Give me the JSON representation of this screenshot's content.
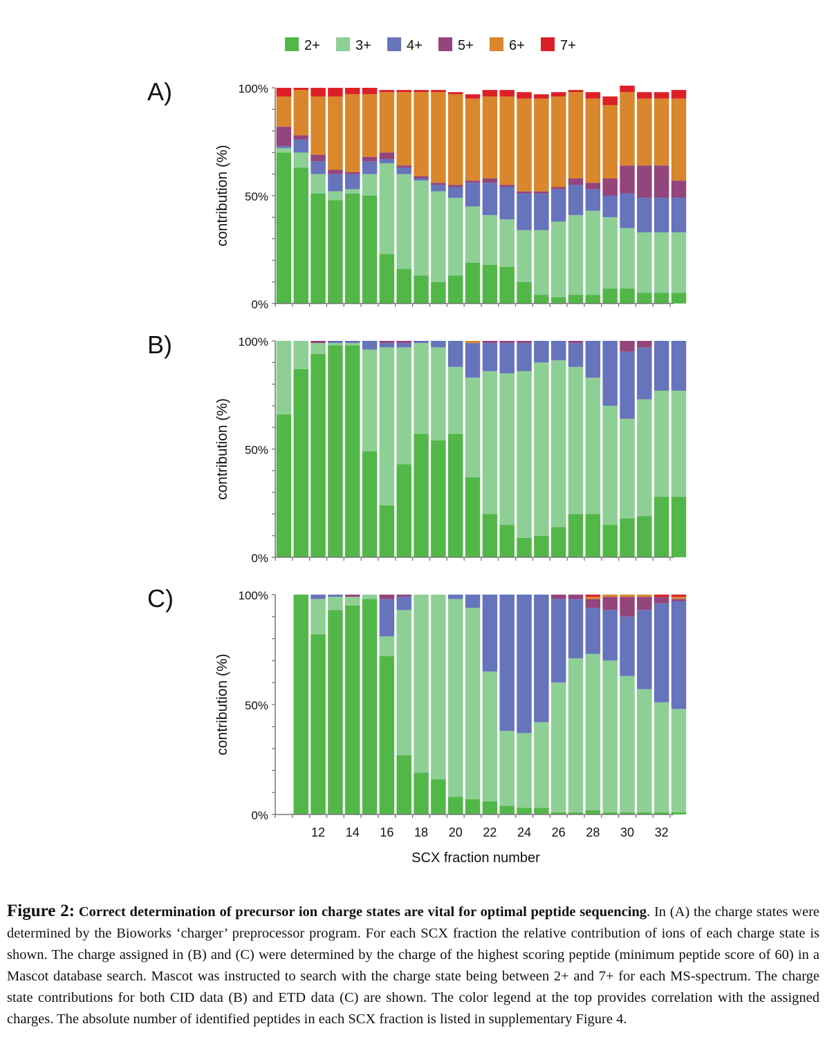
{
  "legend": {
    "items": [
      {
        "label": "2+",
        "color": "#52b748"
      },
      {
        "label": "3+",
        "color": "#8ecf95"
      },
      {
        "label": "4+",
        "color": "#6674bc"
      },
      {
        "label": "5+",
        "color": "#94457c"
      },
      {
        "label": "6+",
        "color": "#d9862c"
      },
      {
        "label": "7+",
        "color": "#dc2027"
      }
    ]
  },
  "chart_data": [
    {
      "type": "bar",
      "stacked": true,
      "panel_label": "A)",
      "ylabel": "contribution (%)",
      "yticks": [
        "0%",
        "50%",
        "100%"
      ],
      "ylim": [
        0,
        100
      ],
      "categories": [
        10,
        11,
        12,
        13,
        14,
        15,
        16,
        17,
        18,
        19,
        20,
        21,
        22,
        23,
        24,
        25,
        26,
        27,
        28,
        29,
        30,
        31,
        32,
        33
      ],
      "series": [
        {
          "name": "2+",
          "values": [
            70,
            63,
            51,
            48,
            51,
            50,
            23,
            16,
            13,
            10,
            13,
            19,
            18,
            17,
            10,
            4,
            3,
            4,
            4,
            7,
            7,
            5,
            5,
            5
          ]
        },
        {
          "name": "3+",
          "values": [
            2,
            7,
            9,
            4,
            2,
            10,
            42,
            44,
            44,
            42,
            36,
            26,
            23,
            22,
            24,
            30,
            35,
            37,
            39,
            33,
            28,
            28,
            28,
            28
          ]
        },
        {
          "name": "4+",
          "values": [
            1,
            6,
            6,
            8,
            7,
            6,
            2,
            3,
            1,
            3,
            5,
            11,
            15,
            15,
            17,
            17,
            15,
            14,
            10,
            10,
            16,
            16,
            16,
            16
          ]
        },
        {
          "name": "5+",
          "values": [
            9,
            2,
            3,
            2,
            1,
            2,
            3,
            1,
            1,
            1,
            1,
            1,
            2,
            1,
            1,
            1,
            1,
            3,
            3,
            8,
            13,
            15,
            15,
            8
          ]
        },
        {
          "name": "6+",
          "values": [
            14,
            21,
            27,
            34,
            36,
            29,
            28,
            34,
            39,
            42,
            42,
            38,
            38,
            41,
            43,
            43,
            42,
            40,
            39,
            34,
            34,
            31,
            31,
            38
          ]
        },
        {
          "name": "7+",
          "values": [
            4,
            1,
            4,
            4,
            3,
            3,
            1,
            1,
            1,
            1,
            1,
            2,
            3,
            3,
            3,
            2,
            2,
            1,
            3,
            4,
            3,
            3,
            3,
            4
          ]
        }
      ]
    },
    {
      "type": "bar",
      "stacked": true,
      "panel_label": "B)",
      "ylabel": "contribution (%)",
      "yticks": [
        "0%",
        "50%",
        "100%"
      ],
      "ylim": [
        0,
        100
      ],
      "categories": [
        10,
        11,
        12,
        13,
        14,
        15,
        16,
        17,
        18,
        19,
        20,
        21,
        22,
        23,
        24,
        25,
        26,
        27,
        28,
        29,
        30,
        31,
        32,
        33
      ],
      "series": [
        {
          "name": "2+",
          "values": [
            66,
            87,
            94,
            98,
            98,
            49,
            24,
            43,
            57,
            54,
            57,
            37,
            20,
            15,
            9,
            10,
            14,
            20,
            20,
            15,
            18,
            19,
            28,
            28
          ]
        },
        {
          "name": "3+",
          "values": [
            34,
            13,
            5,
            1,
            1,
            47,
            73,
            54,
            42,
            43,
            31,
            46,
            66,
            70,
            77,
            80,
            77,
            68,
            63,
            55,
            46,
            54,
            49,
            49
          ]
        },
        {
          "name": "4+",
          "values": [
            0,
            0,
            0,
            1,
            1,
            4,
            2,
            2,
            1,
            3,
            12,
            16,
            13,
            14,
            13,
            10,
            9,
            11,
            17,
            30,
            31,
            24,
            23,
            23
          ]
        },
        {
          "name": "5+",
          "values": [
            0,
            0,
            1,
            0,
            0,
            0,
            1,
            1,
            0,
            0,
            0,
            0,
            1,
            1,
            1,
            0,
            0,
            1,
            0,
            0,
            5,
            3,
            0,
            0
          ]
        },
        {
          "name": "6+",
          "values": [
            0,
            0,
            0,
            0,
            0,
            0,
            0,
            0,
            0,
            0,
            0,
            1,
            0,
            0,
            0,
            0,
            0,
            0,
            0,
            0,
            0,
            0,
            0,
            0
          ]
        },
        {
          "name": "7+",
          "values": [
            0,
            0,
            0,
            0,
            0,
            0,
            0,
            0,
            0,
            0,
            0,
            0,
            0,
            0,
            0,
            0,
            0,
            0,
            0,
            0,
            0,
            0,
            0,
            0
          ]
        }
      ]
    },
    {
      "type": "bar",
      "stacked": true,
      "panel_label": "C)",
      "ylabel": "contribution (%)",
      "xlabel": "SCX fraction number",
      "yticks": [
        "0%",
        "50%",
        "100%"
      ],
      "xticks": [
        "12",
        "14",
        "16",
        "18",
        "20",
        "22",
        "24",
        "26",
        "28",
        "30",
        "32"
      ],
      "ylim": [
        0,
        100
      ],
      "categories": [
        11,
        12,
        13,
        14,
        15,
        16,
        17,
        18,
        19,
        20,
        21,
        22,
        23,
        24,
        25,
        26,
        27,
        28,
        29,
        30,
        31,
        32,
        33
      ],
      "series": [
        {
          "name": "2+",
          "values": [
            100,
            82,
            93,
            95,
            98,
            72,
            27,
            19,
            16,
            8,
            7,
            6,
            4,
            3,
            3,
            1,
            1,
            2,
            1,
            1,
            1,
            1,
            1
          ]
        },
        {
          "name": "3+",
          "values": [
            0,
            16,
            6,
            4,
            2,
            9,
            66,
            81,
            84,
            90,
            87,
            59,
            34,
            34,
            39,
            59,
            70,
            71,
            69,
            62,
            56,
            50,
            47
          ]
        },
        {
          "name": "4+",
          "values": [
            0,
            2,
            1,
            0,
            0,
            17,
            6,
            0,
            0,
            2,
            6,
            35,
            62,
            63,
            58,
            38,
            27,
            21,
            23,
            27,
            36,
            45,
            49
          ]
        },
        {
          "name": "5+",
          "values": [
            0,
            0,
            0,
            1,
            0,
            2,
            1,
            0,
            0,
            0,
            0,
            0,
            0,
            0,
            0,
            2,
            2,
            4,
            6,
            9,
            6,
            3,
            1
          ]
        },
        {
          "name": "6+",
          "values": [
            0,
            0,
            0,
            0,
            0,
            0,
            0,
            0,
            0,
            0,
            0,
            0,
            0,
            0,
            0,
            0,
            0,
            1,
            1,
            1,
            1,
            0,
            1
          ]
        },
        {
          "name": "7+",
          "values": [
            0,
            0,
            0,
            0,
            0,
            0,
            0,
            0,
            0,
            0,
            0,
            0,
            0,
            0,
            0,
            0,
            0,
            1,
            0,
            0,
            0,
            1,
            1
          ]
        }
      ]
    }
  ],
  "caption": {
    "figure_label": "Figure 2:",
    "bold_title": "Correct determination of precursor ion charge states are vital for optimal peptide sequencing",
    "body": ". In (A) the charge states were determined by the Bioworks ‘charger’ preprocessor program. For each SCX fraction the relative contribution of ions of each charge state is shown.  The charge assigned in (B) and (C) were determined by the charge of the highest scoring peptide (minimum peptide score of 60) in a Mascot database search. Mascot was instructed to search with the   charge state being between 2+ and 7+ for each MS-spectrum. The charge state contributions for both CID data (B) and ETD data (C) are shown. The color legend at the top provides correlation with the assigned charges. The absolute number of identified peptides in each SCX fraction is listed in  supplementary Figure 4."
  }
}
